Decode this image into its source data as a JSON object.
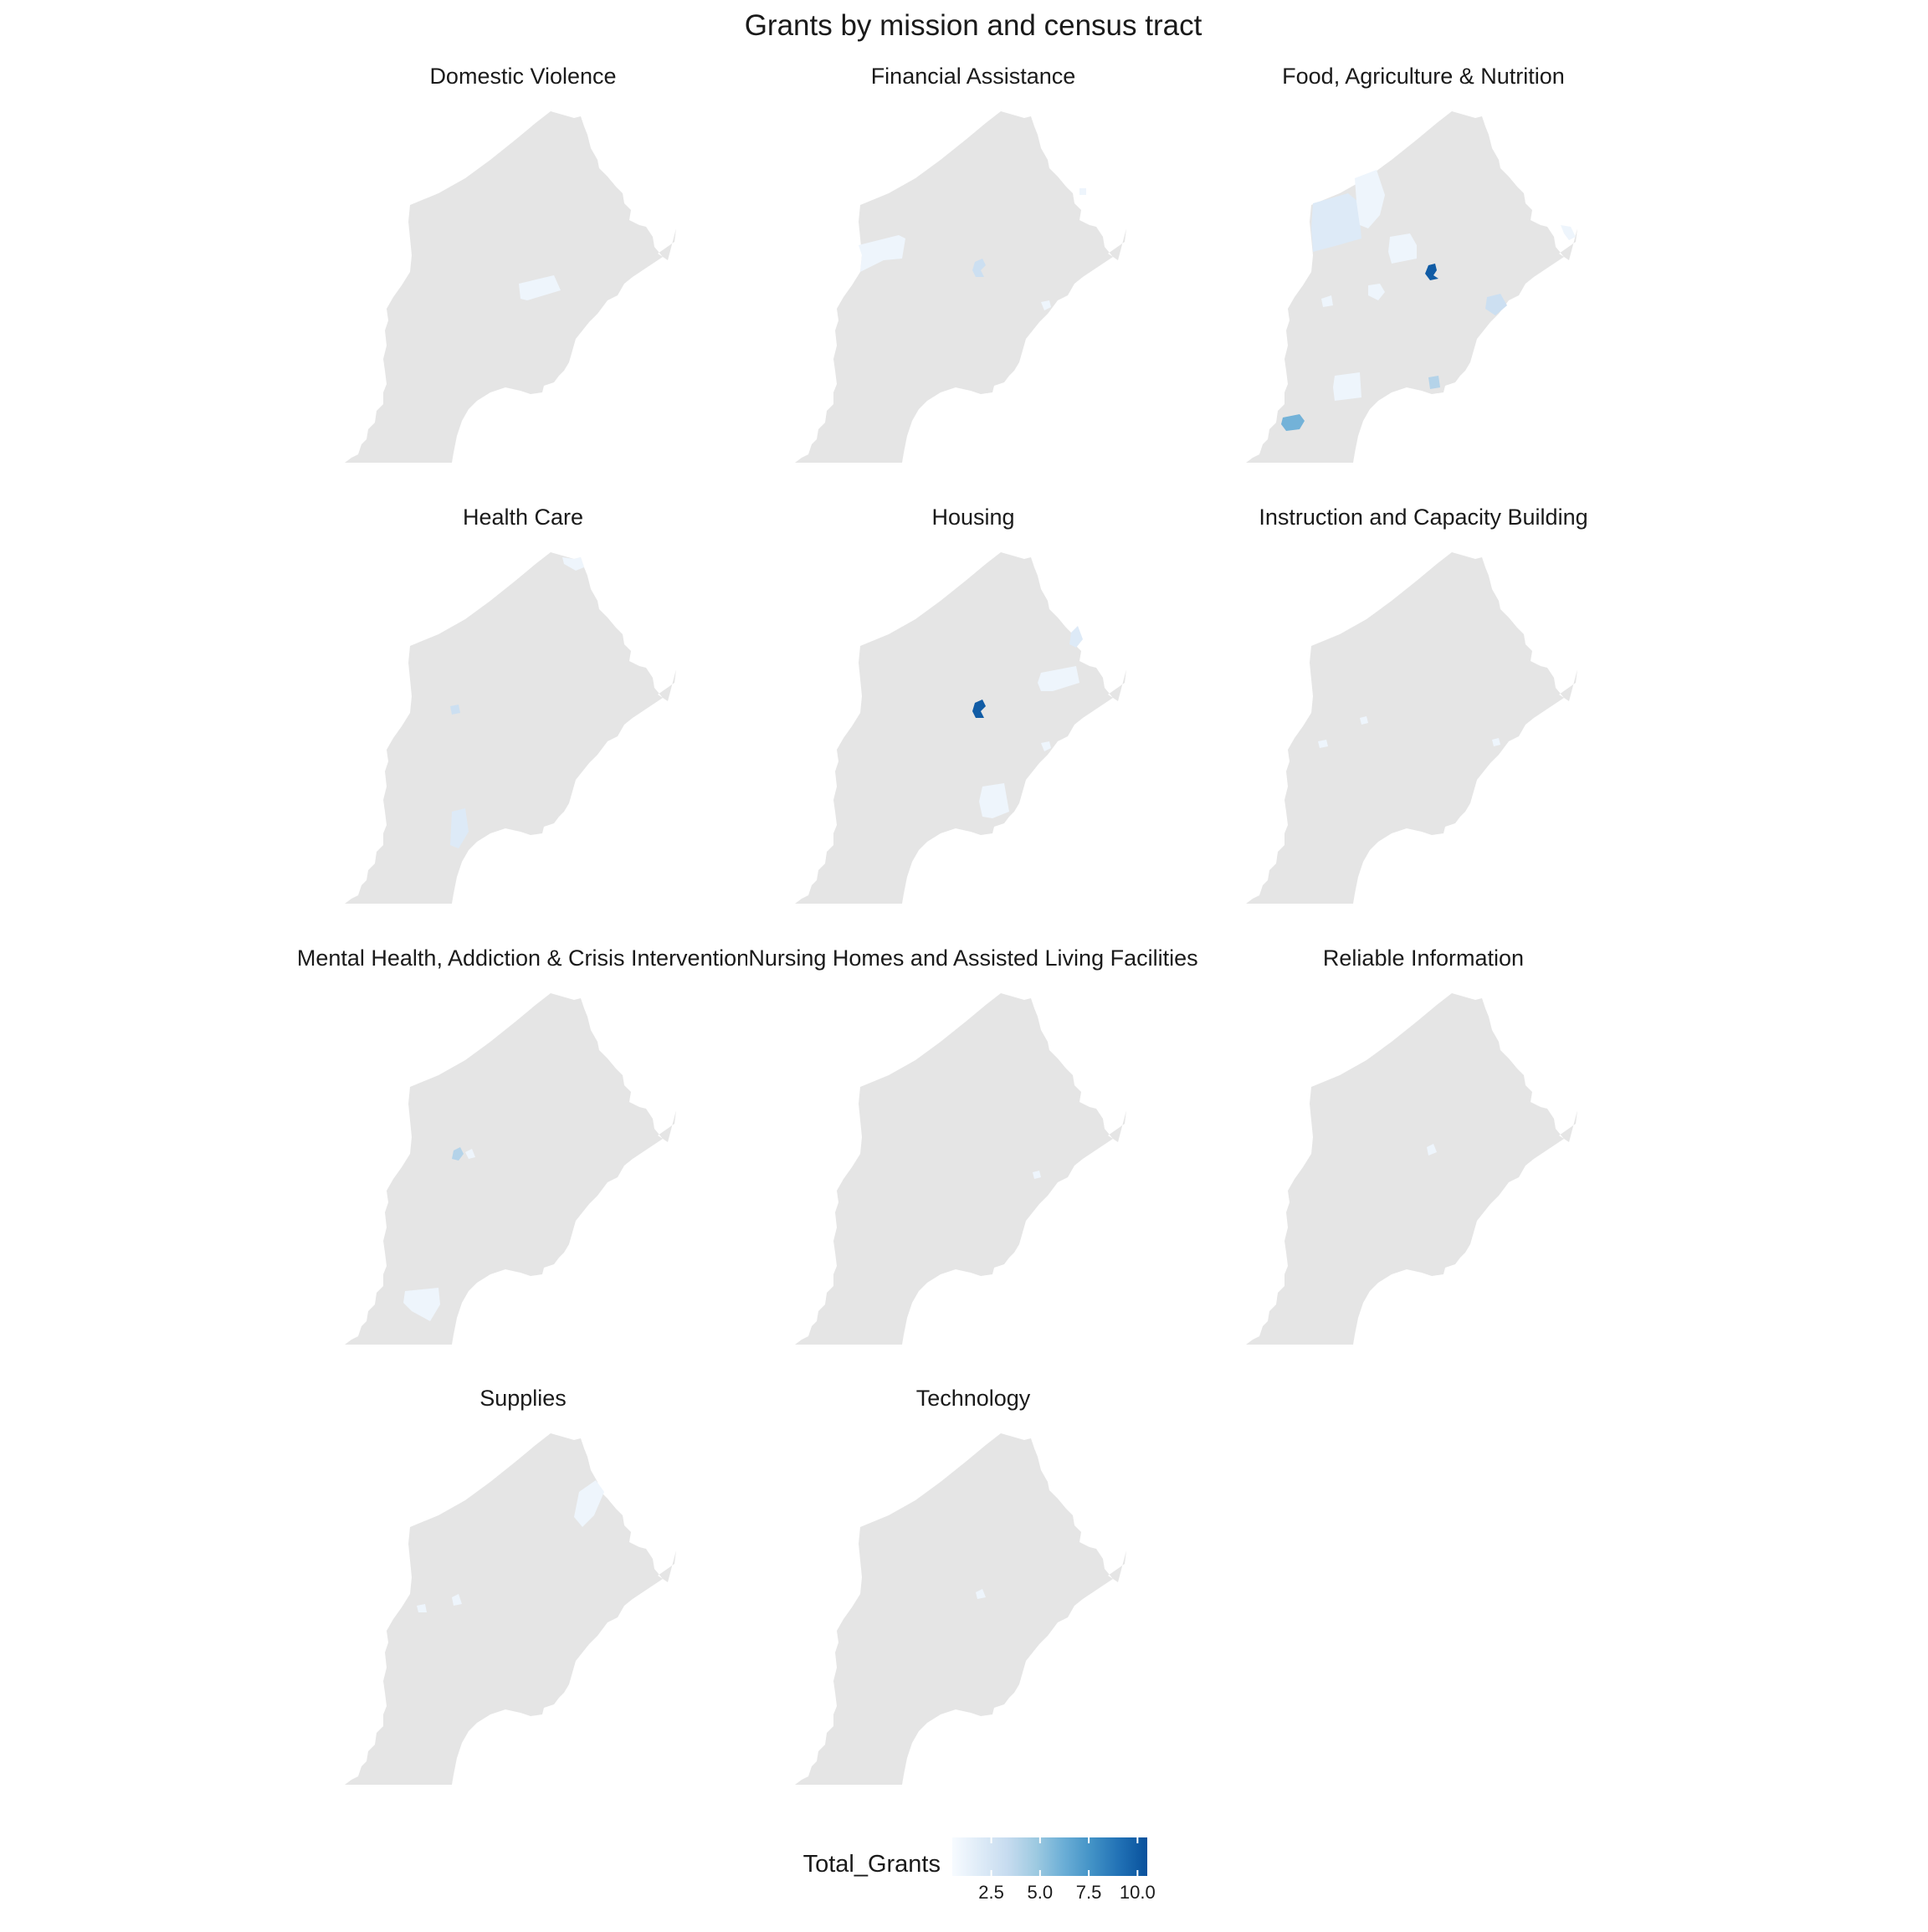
{
  "chart_data": {
    "type": "choropleth-facets",
    "title": "Grants by mission and census tract",
    "panels": [
      {
        "title": "Domestic Violence",
        "regions": [
          {
            "id": "central-east-tract",
            "value": 1
          }
        ]
      },
      {
        "title": "Financial Assistance",
        "regions": [
          {
            "id": "west-tract",
            "value": 1
          },
          {
            "id": "center-tract",
            "value": 3
          },
          {
            "id": "east-center-tract",
            "value": 1
          },
          {
            "id": "northeast-small-tract",
            "value": 1
          }
        ]
      },
      {
        "title": "Food, Agriculture & Nutrition",
        "regions": [
          {
            "id": "north-west-tract",
            "value": 2
          },
          {
            "id": "north-tract",
            "value": 1
          },
          {
            "id": "north-center-tract",
            "value": 1
          },
          {
            "id": "center-east-tract",
            "value": 10
          },
          {
            "id": "east-tract",
            "value": 3
          },
          {
            "id": "far-east-tract",
            "value": 1
          },
          {
            "id": "west-center-tract",
            "value": 1
          },
          {
            "id": "center-small-tract",
            "value": 1
          },
          {
            "id": "south-center-tract",
            "value": 1
          },
          {
            "id": "south-east-tract",
            "value": 4
          },
          {
            "id": "southwest-tract",
            "value": 6
          }
        ]
      },
      {
        "title": "Health Care",
        "regions": [
          {
            "id": "north-edge-tract",
            "value": 1
          },
          {
            "id": "center-tract",
            "value": 3
          },
          {
            "id": "south-tract",
            "value": 2
          }
        ]
      },
      {
        "title": "Housing",
        "regions": [
          {
            "id": "center-tract",
            "value": 10
          },
          {
            "id": "north-east-tract",
            "value": 2
          },
          {
            "id": "east-tract",
            "value": 1
          },
          {
            "id": "east-center-tract",
            "value": 1
          },
          {
            "id": "south-tract",
            "value": 1
          }
        ]
      },
      {
        "title": "Instruction and Capacity Building",
        "regions": [
          {
            "id": "center-tract",
            "value": 1
          },
          {
            "id": "west-center-tract",
            "value": 1
          },
          {
            "id": "east-center-tract",
            "value": 1
          }
        ]
      },
      {
        "title": "Mental Health, Addiction & Crisis Intervention",
        "regions": [
          {
            "id": "center-tract",
            "value": 4
          },
          {
            "id": "center-east-tract",
            "value": 1
          },
          {
            "id": "southwest-tract",
            "value": 1
          }
        ]
      },
      {
        "title": "Nursing Homes and Assisted Living Facilities",
        "regions": [
          {
            "id": "east-center-tract",
            "value": 1
          }
        ]
      },
      {
        "title": "Reliable Information",
        "regions": [
          {
            "id": "center-tract",
            "value": 1
          }
        ]
      },
      {
        "title": "Supplies",
        "regions": [
          {
            "id": "north-east-tract",
            "value": 1
          },
          {
            "id": "center-tract",
            "value": 1
          },
          {
            "id": "west-center-tract",
            "value": 1
          }
        ]
      },
      {
        "title": "Technology",
        "regions": [
          {
            "id": "center-tract",
            "value": 1
          }
        ]
      }
    ],
    "legend": {
      "title": "Total_Grants",
      "placement": "bottom",
      "range": [
        0.5,
        10.5
      ],
      "ticks": [
        2.5,
        5.0,
        7.5,
        10.0
      ],
      "tick_labels": [
        "2.5",
        "5.0",
        "7.5",
        "10.0"
      ]
    },
    "colors": {
      "base": "#e5e5e5",
      "low": "#f7fbff",
      "mid": "#9ecae1",
      "high": "#08519c",
      "scale": [
        "#f7fbff",
        "#deebf7",
        "#c6dbef",
        "#9ecae1",
        "#6baed6",
        "#4292c6",
        "#2171b5",
        "#08519c"
      ]
    }
  }
}
